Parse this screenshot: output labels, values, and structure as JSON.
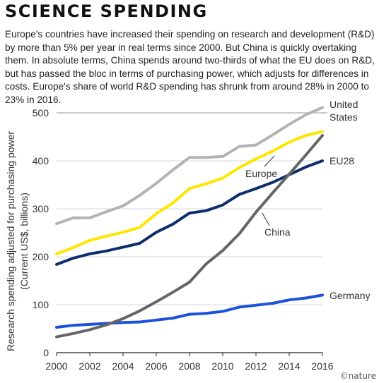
{
  "chart_data": {
    "type": "line",
    "title": "SCIENCE SPENDING",
    "description": "Europe's countries have increased their spending on research and development (R&D) by more than 5% per year in real terms since 2000. But China is quickly overtaking them. In absolute terms, China spends around two-thirds of what the EU does on R&D, but has passed the bloc in terms of purchasing power, which adjusts for differences in costs. Europe's share of world R&D spending has shrunk from around 28% in 2000 to 23% in 2016.",
    "ylabel_line1": "Research spending adjusted for purchasing power",
    "ylabel_line2": "(Current US$, billions)",
    "xlabel": "",
    "xlim": [
      2000,
      2016
    ],
    "ylim": [
      0,
      500
    ],
    "x_ticks": [
      "2000",
      "2002",
      "2004",
      "2006",
      "2008",
      "2010",
      "2012",
      "2014",
      "2016"
    ],
    "y_ticks": [
      "0",
      "100",
      "200",
      "300",
      "400",
      "500"
    ],
    "x": [
      2000,
      2001,
      2002,
      2003,
      2004,
      2005,
      2006,
      2007,
      2008,
      2009,
      2010,
      2011,
      2012,
      2013,
      2014,
      2015,
      2016
    ],
    "series": [
      {
        "name": "United States",
        "label_line1": "United",
        "label_line2": "States",
        "color": "#b3b3b3",
        "values": [
          269,
          281,
          281,
          294,
          306,
          328,
          353,
          381,
          407,
          407,
          409,
          430,
          433,
          454,
          476,
          496,
          511
        ]
      },
      {
        "name": "Europe",
        "color": "#ffe600",
        "values": [
          206,
          219,
          234,
          243,
          251,
          261,
          290,
          312,
          342,
          352,
          364,
          386,
          404,
          420,
          439,
          453,
          461
        ]
      },
      {
        "name": "EU28",
        "color": "#0d2e6b",
        "values": [
          184,
          197,
          206,
          212,
          220,
          228,
          251,
          268,
          291,
          296,
          308,
          330,
          342,
          355,
          371,
          387,
          400
        ]
      },
      {
        "name": "China",
        "color": "#666666",
        "values": [
          33,
          40,
          48,
          58,
          71,
          87,
          106,
          126,
          147,
          185,
          213,
          248,
          293,
          333,
          372,
          412,
          453
        ]
      },
      {
        "name": "Germany",
        "color": "#1a52d9",
        "values": [
          53,
          57,
          59,
          61,
          63,
          64,
          68,
          72,
          80,
          82,
          86,
          95,
          99,
          103,
          110,
          114,
          120
        ]
      }
    ],
    "grid": "horizontal",
    "reference_line": 500,
    "credit": "©nature"
  }
}
